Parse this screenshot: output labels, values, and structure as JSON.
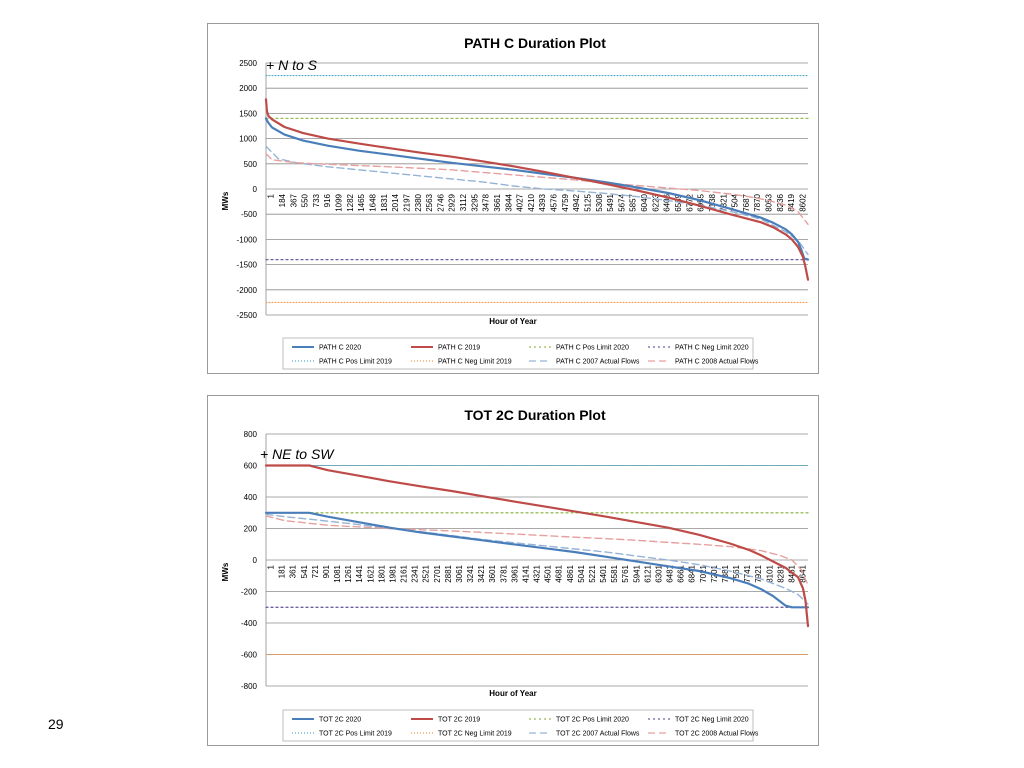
{
  "slide": {
    "number": "29"
  },
  "chart_data": [
    {
      "type": "line",
      "title": "PATH C Duration Plot",
      "annotation": "+ N to S",
      "xlabel": "Hour of Year",
      "ylabel": "MWs",
      "ylim": [
        -2500,
        2500
      ],
      "y_ticks": [
        2500,
        2000,
        1500,
        1000,
        500,
        0,
        -500,
        -1000,
        -1500,
        -2000,
        -2500
      ],
      "x_range": [
        1,
        8760
      ],
      "x_ticks": [
        "1",
        "184",
        "367",
        "550",
        "733",
        "916",
        "1099",
        "1282",
        "1465",
        "1648",
        "1831",
        "2014",
        "2197",
        "2380",
        "2563",
        "2746",
        "2929",
        "3112",
        "3295",
        "3478",
        "3661",
        "3844",
        "4027",
        "4210",
        "4393",
        "4576",
        "4759",
        "4942",
        "5125",
        "5308",
        "5491",
        "5674",
        "5857",
        "6040",
        "6223",
        "6406",
        "6589",
        "6772",
        "6955",
        "7138",
        "7321",
        "7504",
        "7687",
        "7870",
        "8053",
        "8236",
        "8419",
        "8602"
      ],
      "grid": true,
      "legend_position": "bottom",
      "series": [
        {
          "name": "PATH C 2020",
          "color": "#4a7ebb",
          "dash": "solid",
          "width": 2.2,
          "x": [
            1,
            30,
            100,
            300,
            600,
            1000,
            1500,
            2000,
            2500,
            3000,
            3500,
            4000,
            4500,
            5000,
            5500,
            6000,
            6500,
            7000,
            7500,
            8000,
            8200,
            8400,
            8500,
            8600,
            8650,
            8700,
            8760
          ],
          "y": [
            1400,
            1330,
            1220,
            1080,
            960,
            860,
            760,
            680,
            600,
            520,
            450,
            380,
            300,
            220,
            130,
            30,
            -80,
            -220,
            -390,
            -570,
            -670,
            -800,
            -900,
            -1050,
            -1200,
            -1380,
            -1400
          ]
        },
        {
          "name": "PATH C 2019",
          "color": "#be4b48",
          "dash": "solid",
          "width": 2.2,
          "x": [
            1,
            15,
            40,
            100,
            300,
            600,
            1000,
            1500,
            2000,
            2500,
            3000,
            3500,
            4000,
            4500,
            5000,
            5500,
            6000,
            6500,
            7000,
            7500,
            8000,
            8200,
            8400,
            8500,
            8600,
            8680,
            8720,
            8760
          ],
          "y": [
            1780,
            1550,
            1450,
            1380,
            1230,
            1110,
            1000,
            900,
            810,
            720,
            640,
            550,
            450,
            340,
            220,
            100,
            -30,
            -170,
            -330,
            -500,
            -660,
            -760,
            -900,
            -1000,
            -1150,
            -1350,
            -1550,
            -1800
          ]
        },
        {
          "name": "PATH C Pos Limit 2020",
          "color": "#9bbb59",
          "dash": "2 3",
          "width": 1.3,
          "x": [
            1,
            8760
          ],
          "y": [
            1400,
            1400
          ]
        },
        {
          "name": "PATH C Neg Limit 2020",
          "color": "#7060a0",
          "dash": "2 3",
          "width": 1.3,
          "x": [
            1,
            8760
          ],
          "y": [
            -1400,
            -1400
          ]
        },
        {
          "name": "PATH C Pos Limit 2019",
          "color": "#4bacc6",
          "dash": "1 2",
          "width": 1.1,
          "x": [
            1,
            8760
          ],
          "y": [
            2250,
            2250
          ]
        },
        {
          "name": "PATH C Neg Limit 2019",
          "color": "#f79646",
          "dash": "1 2",
          "width": 1.1,
          "x": [
            1,
            8760
          ],
          "y": [
            -2250,
            -2250
          ]
        },
        {
          "name": "PATH C 2007 Actual Flows",
          "color": "#95b3d7",
          "dash": "7 4",
          "width": 1.4,
          "x": [
            1,
            200,
            500,
            1000,
            1500,
            2000,
            2500,
            3000,
            3500,
            4000,
            4500,
            5000,
            5500,
            6000,
            6500,
            7000,
            7300,
            7600,
            8000,
            8400,
            8600,
            8760
          ],
          "y": [
            850,
            600,
            520,
            440,
            380,
            320,
            260,
            200,
            140,
            60,
            0,
            -40,
            -90,
            -150,
            -230,
            -320,
            -390,
            -470,
            -600,
            -850,
            -1020,
            -1300
          ]
        },
        {
          "name": "PATH C 2008 Actual Flows",
          "color": "#e6a09e",
          "dash": "7 4",
          "width": 1.4,
          "x": [
            1,
            100,
            500,
            1000,
            2000,
            3000,
            3500,
            4000,
            4500,
            5000,
            5500,
            6000,
            6500,
            7000,
            7500,
            7800,
            8100,
            8400,
            8600,
            8760
          ],
          "y": [
            700,
            580,
            520,
            490,
            440,
            380,
            330,
            280,
            230,
            180,
            120,
            70,
            20,
            -30,
            -100,
            -150,
            -220,
            -320,
            -450,
            -700
          ]
        }
      ]
    },
    {
      "type": "line",
      "title": "TOT 2C Duration Plot",
      "annotation": "+ NE to SW",
      "xlabel": "Hour of Year",
      "ylabel": "MWs",
      "ylim": [
        -800,
        800
      ],
      "y_ticks": [
        800,
        600,
        400,
        200,
        0,
        -200,
        -400,
        -600,
        -800
      ],
      "x_range": [
        1,
        8760
      ],
      "x_ticks": [
        "1",
        "181",
        "361",
        "541",
        "721",
        "901",
        "1081",
        "1261",
        "1441",
        "1621",
        "1801",
        "1981",
        "2161",
        "2341",
        "2521",
        "2701",
        "2881",
        "3061",
        "3241",
        "3421",
        "3601",
        "3781",
        "3961",
        "4141",
        "4321",
        "4501",
        "4681",
        "4861",
        "5041",
        "5221",
        "5401",
        "5581",
        "5761",
        "5941",
        "6121",
        "6301",
        "6481",
        "6661",
        "6841",
        "7021",
        "7201",
        "7381",
        "7561",
        "7741",
        "7921",
        "8101",
        "8281",
        "8461",
        "8641"
      ],
      "grid": true,
      "legend_position": "bottom",
      "series": [
        {
          "name": "TOT 2C 2020",
          "color": "#4a7ebb",
          "dash": "solid",
          "width": 2.2,
          "x": [
            1,
            700,
            1000,
            1500,
            2000,
            2500,
            3000,
            3500,
            4000,
            4500,
            5000,
            5500,
            6000,
            6500,
            7000,
            7500,
            7800,
            8000,
            8200,
            8400,
            8500,
            8600,
            8760
          ],
          "y": [
            300,
            300,
            275,
            240,
            205,
            175,
            150,
            125,
            100,
            75,
            50,
            20,
            -10,
            -40,
            -70,
            -115,
            -150,
            -185,
            -230,
            -290,
            -300,
            -300,
            -300
          ]
        },
        {
          "name": "TOT 2C 2019",
          "color": "#be4b48",
          "dash": "solid",
          "width": 2.2,
          "x": [
            1,
            700,
            1000,
            1500,
            2000,
            2500,
            3000,
            3500,
            4000,
            4500,
            5000,
            5500,
            6000,
            6500,
            7000,
            7500,
            7800,
            8000,
            8200,
            8400,
            8500,
            8600,
            8680,
            8720,
            8760
          ],
          "y": [
            600,
            600,
            570,
            535,
            500,
            468,
            438,
            405,
            372,
            340,
            307,
            275,
            240,
            205,
            160,
            105,
            65,
            30,
            -10,
            -50,
            -80,
            -110,
            -180,
            -260,
            -420
          ]
        },
        {
          "name": "TOT 2C Pos Limit 2020",
          "color": "#9bbb59",
          "dash": "2 3",
          "width": 1.3,
          "x": [
            1,
            8760
          ],
          "y": [
            300,
            300
          ]
        },
        {
          "name": "TOT 2C Neg Limit 2020",
          "color": "#7060a0",
          "dash": "2 3",
          "width": 1.3,
          "x": [
            1,
            8760
          ],
          "y": [
            -300,
            -300
          ]
        },
        {
          "name": "TOT 2C Pos Limit 2019",
          "color": "#4bacc6",
          "dash": "1 2",
          "width": 1.1,
          "x": [
            1,
            8760
          ],
          "y": [
            600,
            600
          ]
        },
        {
          "name": "TOT 2C Neg Limit 2019",
          "color": "#f79646",
          "dash": "1 2",
          "width": 1.1,
          "x": [
            1,
            8760
          ],
          "y": [
            -600,
            -600
          ]
        },
        {
          "name": "TOT 2C 2007 Actual Flows",
          "color": "#95b3d7",
          "dash": "7 4",
          "width": 1.4,
          "x": [
            1,
            300,
            800,
            1500,
            2000,
            2500,
            3000,
            3500,
            4000,
            4500,
            5000,
            5500,
            6000,
            6500,
            7000,
            7500,
            8000,
            8400,
            8600,
            8760
          ],
          "y": [
            290,
            275,
            255,
            225,
            200,
            180,
            155,
            130,
            110,
            90,
            70,
            50,
            25,
            0,
            -30,
            -70,
            -120,
            -180,
            -220,
            -280
          ]
        },
        {
          "name": "TOT 2C 2008 Actual Flows",
          "color": "#e6a09e",
          "dash": "7 4",
          "width": 1.4,
          "x": [
            1,
            300,
            1000,
            2000,
            3000,
            3500,
            4000,
            4500,
            5000,
            5500,
            6000,
            6500,
            7000,
            7500,
            8000,
            8300,
            8500,
            8650,
            8760
          ],
          "y": [
            280,
            250,
            220,
            200,
            185,
            175,
            165,
            155,
            145,
            135,
            125,
            112,
            100,
            85,
            60,
            30,
            0,
            -60,
            -160
          ]
        }
      ]
    }
  ]
}
